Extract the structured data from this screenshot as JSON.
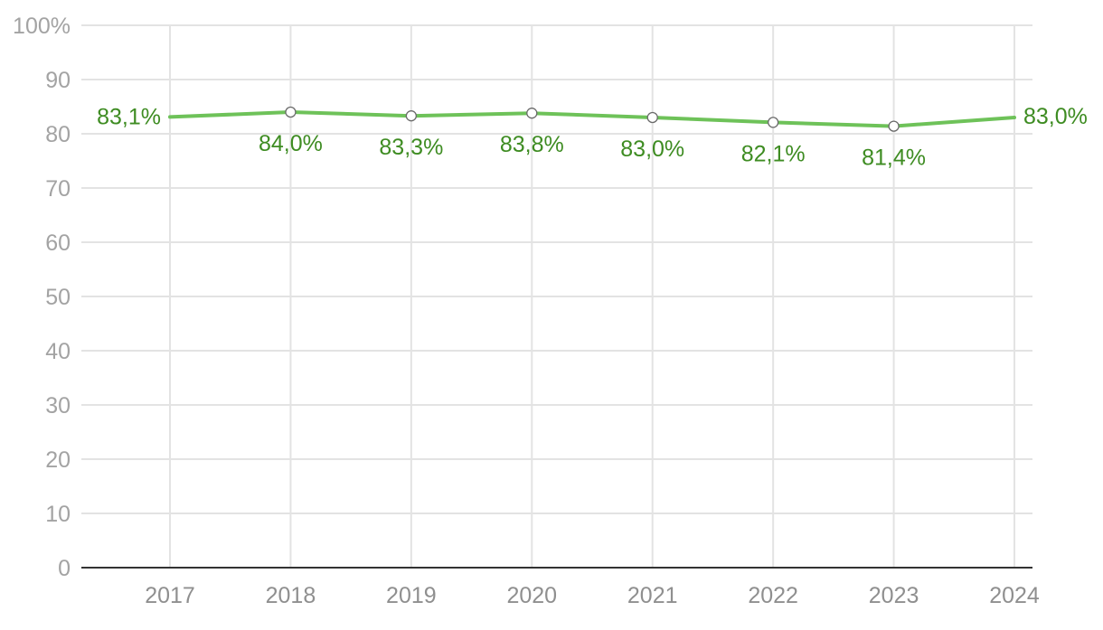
{
  "chart_data": {
    "type": "line",
    "x": [
      "2017",
      "2018",
      "2019",
      "2020",
      "2021",
      "2022",
      "2023",
      "2024"
    ],
    "series": [
      {
        "values": [
          83.1,
          84.0,
          83.3,
          83.8,
          83.0,
          82.1,
          81.4,
          83.0
        ],
        "labels": [
          "83,1%",
          "84,0%",
          "83,3%",
          "83,8%",
          "83,0%",
          "82,1%",
          "81,4%",
          "83,0%"
        ],
        "color": "#6ec259"
      }
    ],
    "ylim": [
      0,
      100
    ],
    "yticks": [
      0,
      10,
      20,
      30,
      40,
      50,
      60,
      70,
      80,
      90,
      100
    ],
    "ytick_labels": [
      "0",
      "10",
      "20",
      "30",
      "40",
      "50",
      "60",
      "70",
      "80",
      "90",
      "100%"
    ],
    "grid": true,
    "xlabel": "",
    "ylabel": "",
    "label_color": "#3e8c22",
    "gridline_color": "#e3e3e3"
  }
}
